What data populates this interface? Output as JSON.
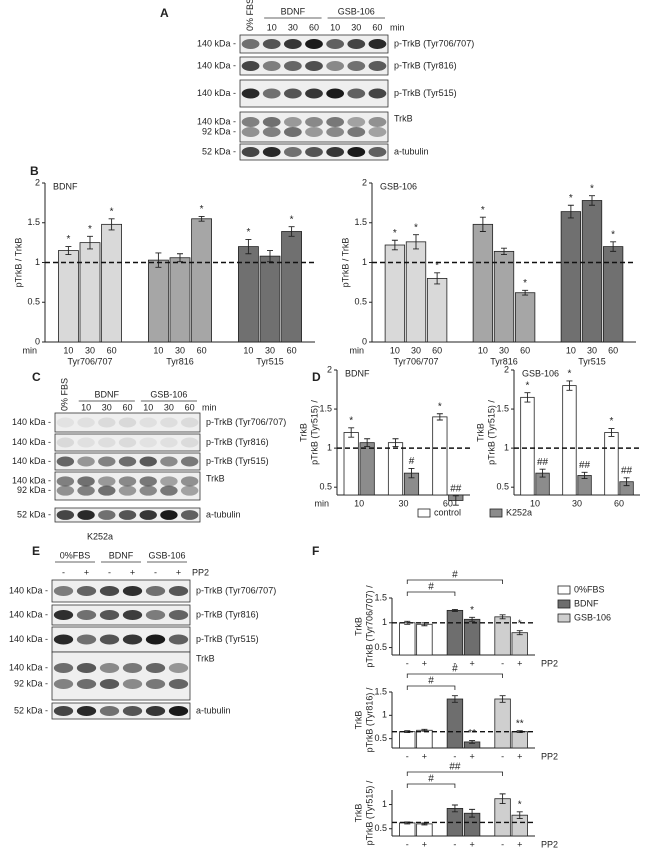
{
  "panel_labels": [
    "A",
    "B",
    "C",
    "D",
    "E",
    "F"
  ],
  "blots": [
    {
      "groups": [
        {
          "label": "0% FBS"
        },
        {
          "label": "BDNF",
          "lanes": [
            "10",
            "30",
            "60"
          ]
        },
        {
          "label": "GSB-106",
          "lanes": [
            "10",
            "30",
            "60"
          ]
        }
      ],
      "unit": "min",
      "rows": [
        {
          "kda": [
            "140 kDa -"
          ],
          "label": "p-TrkB (Tyr706/707)"
        },
        {
          "kda": [
            "140 kDa -"
          ],
          "label": "p-TrkB (Tyr816)"
        },
        {
          "kda": [
            "140 kDa -"
          ],
          "label": "p-TrkB (Tyr515)"
        },
        {
          "kda": [
            "140 kDa -",
            "92 kDa -"
          ],
          "label": "TrkB"
        },
        {
          "kda": [
            "52 kDa -"
          ],
          "label": "a-tubulin"
        }
      ]
    },
    {
      "groups": [
        {
          "label": "0% FBS"
        },
        {
          "label": "BDNF",
          "lanes": [
            "10",
            "30",
            "60"
          ]
        },
        {
          "label": "GSB-106",
          "lanes": [
            "10",
            "30",
            "60"
          ]
        }
      ],
      "unit": "min",
      "rows": [
        {
          "kda": [
            "140 kDa -"
          ],
          "label": "p-TrkB (Tyr706/707)"
        },
        {
          "kda": [
            "140 kDa -"
          ],
          "label": "p-TrkB (Tyr816)"
        },
        {
          "kda": [
            "140 kDa -"
          ],
          "label": "p-TrkB (Tyr515)"
        },
        {
          "kda": [
            "140 kDa -",
            "92 kDa -"
          ],
          "label": "TrkB"
        },
        {
          "kda": [
            "52 kDa -"
          ],
          "label": "a-tubulin"
        }
      ],
      "footer": "K252a"
    },
    {
      "groups": [
        {
          "label": "0%FBS",
          "lanes": [
            "-",
            "+"
          ]
        },
        {
          "label": "BDNF",
          "lanes": [
            "-",
            "+"
          ]
        },
        {
          "label": "GSB-106",
          "lanes": [
            "-",
            "+"
          ]
        }
      ],
      "unit": "PP2",
      "rows": [
        {
          "kda": [
            "140 kDa -"
          ],
          "label": "p-TrkB (Tyr706/707)"
        },
        {
          "kda": [
            "140 kDa -"
          ],
          "label": "p-TrkB (Tyr816)"
        },
        {
          "kda": [
            "140 kDa -"
          ],
          "label": "p-TrkB (Tyr515)"
        },
        {
          "kda": [
            "140 kDa -",
            "92 kDa -"
          ],
          "label": "TrkB"
        },
        {
          "kda": [
            "52 kDa -"
          ],
          "label": "a-tubulin"
        }
      ]
    }
  ],
  "chart_data": [
    {
      "type": "bar",
      "title": "BDNF",
      "y_label": [
        "pTrkB / TrkB"
      ],
      "ylim": [
        0,
        2
      ],
      "yticks": [
        0,
        0.5,
        1,
        1.5,
        2
      ],
      "reference_line": 1,
      "group_by": "series",
      "categories": [
        "10",
        "30",
        "60"
      ],
      "x_label": "min",
      "x_label_position": "left",
      "series": [
        {
          "name": "Tyr706/707",
          "color": "#d9d9d9",
          "values": [
            1.15,
            1.25,
            1.48
          ],
          "errors": [
            0.05,
            0.08,
            0.07
          ],
          "annotations": [
            "*",
            "*",
            "*"
          ]
        },
        {
          "name": "Tyr816",
          "color": "#a6a6a6",
          "values": [
            1.03,
            1.06,
            1.55
          ],
          "errors": [
            0.09,
            0.05,
            0.03
          ],
          "annotations": [
            null,
            null,
            "*"
          ]
        },
        {
          "name": "Tyr515",
          "color": "#707070",
          "values": [
            1.2,
            1.08,
            1.39
          ],
          "errors": [
            0.09,
            0.07,
            0.06
          ],
          "annotations": [
            "*",
            null,
            "*"
          ]
        }
      ]
    },
    {
      "type": "bar",
      "title": "GSB-106",
      "y_label": [
        "pTrkB / TrkB"
      ],
      "ylim": [
        0,
        2
      ],
      "yticks": [
        0,
        0.5,
        1,
        1.5,
        2
      ],
      "reference_line": 1,
      "group_by": "series",
      "categories": [
        "10",
        "30",
        "60"
      ],
      "x_label": "min",
      "x_label_position": "left",
      "series": [
        {
          "name": "Tyr706/707",
          "color": "#d9d9d9",
          "values": [
            1.22,
            1.26,
            0.8
          ],
          "errors": [
            0.06,
            0.09,
            0.07
          ],
          "annotations": [
            "*",
            "*",
            "*"
          ]
        },
        {
          "name": "Tyr816",
          "color": "#a6a6a6",
          "values": [
            1.48,
            1.14,
            0.62
          ],
          "errors": [
            0.09,
            0.04,
            0.03
          ],
          "annotations": [
            "*",
            null,
            "*"
          ]
        },
        {
          "name": "Tyr515",
          "color": "#707070",
          "values": [
            1.64,
            1.78,
            1.2
          ],
          "errors": [
            0.08,
            0.06,
            0.06
          ],
          "annotations": [
            "*",
            "*",
            "*"
          ]
        }
      ]
    },
    {
      "type": "bar",
      "title": "BDNF",
      "y_label": [
        "pTrkB (Tyr515) /",
        "TrkB"
      ],
      "ylim": [
        0.4,
        2
      ],
      "yticks": [
        0.5,
        1,
        1.5,
        2
      ],
      "reference_line": 1,
      "group_by": "categories",
      "categories": [
        "10",
        "30",
        "60"
      ],
      "x_label": "min",
      "x_label_position": "left",
      "legend": "bottom",
      "series": [
        {
          "name": "control",
          "color": "#ffffff",
          "values": [
            1.2,
            1.07,
            1.4
          ],
          "errors": [
            0.06,
            0.05,
            0.04
          ],
          "annotations": [
            "*",
            null,
            "*"
          ]
        },
        {
          "name": "K252a",
          "color": "#8c8c8c",
          "values": [
            1.07,
            0.68,
            0.33
          ],
          "errors": [
            0.05,
            0.06,
            0.06
          ],
          "annotations": [
            null,
            "#",
            "##"
          ]
        }
      ]
    },
    {
      "type": "bar",
      "title": "GSB-106",
      "y_label": [
        "pTrkB (Tyr515) /",
        "TrkB"
      ],
      "ylim": [
        0.4,
        2
      ],
      "yticks": [
        0.5,
        1,
        1.5,
        2
      ],
      "reference_line": 1,
      "group_by": "categories",
      "categories": [
        "10",
        "30",
        "60"
      ],
      "series": [
        {
          "color": "#ffffff",
          "values": [
            1.65,
            1.8,
            1.2
          ],
          "errors": [
            0.06,
            0.06,
            0.05
          ],
          "annotations": [
            "*",
            "*",
            "*"
          ]
        },
        {
          "color": "#8c8c8c",
          "values": [
            0.68,
            0.65,
            0.57
          ],
          "errors": [
            0.05,
            0.04,
            0.05
          ],
          "annotations": [
            "##",
            "##",
            "##"
          ]
        }
      ]
    },
    {
      "type": "bar",
      "y_label": [
        "pTrkB (Tyr706/707) /",
        "TrkB"
      ],
      "ylim": [
        0.35,
        1.5
      ],
      "yticks": [
        0.5,
        1,
        1.5
      ],
      "reference_line": 1,
      "group_by": "series",
      "categories": [
        "-",
        "+"
      ],
      "x_label": "PP2",
      "x_label_position": "right",
      "legend": "right",
      "brackets": [
        "#",
        "#"
      ],
      "series": [
        {
          "name": "0%FBS",
          "color": "#ffffff",
          "values": [
            1,
            0.97
          ],
          "errors": [
            0.03,
            0.03
          ]
        },
        {
          "name": "BDNF",
          "color": "#6e6e6e",
          "values": [
            1.25,
            1.07
          ],
          "errors": [
            0.02,
            0.04
          ],
          "annotations": [
            null,
            "*"
          ]
        },
        {
          "name": "GSB-106",
          "color": "#cfcfcf",
          "values": [
            1.12,
            0.8
          ],
          "errors": [
            0.04,
            0.04
          ],
          "annotations": [
            null,
            "*"
          ]
        }
      ]
    },
    {
      "type": "bar",
      "y_label": [
        "pTrkB (Tyr816) /",
        "TrkB"
      ],
      "ylim": [
        0.3,
        1.5
      ],
      "yticks": [
        0.5,
        1,
        1.5
      ],
      "reference_line": 0.65,
      "group_by": "series",
      "categories": [
        "-",
        "+"
      ],
      "x_label": "PP2",
      "x_label_position": "right",
      "brackets": [
        "#",
        "#"
      ],
      "series": [
        {
          "color": "#ffffff",
          "values": [
            0.65,
            0.68
          ],
          "errors": [
            0.02,
            0.02
          ]
        },
        {
          "color": "#6e6e6e",
          "values": [
            1.35,
            0.43
          ],
          "errors": [
            0.07,
            0.03
          ],
          "annotations": [
            null,
            "**"
          ]
        },
        {
          "color": "#cfcfcf",
          "values": [
            1.35,
            0.65
          ],
          "errors": [
            0.07,
            0.02
          ],
          "annotations": [
            null,
            "**"
          ]
        }
      ]
    },
    {
      "type": "bar",
      "y_label": [
        "pTrkB (Tyr515) /",
        "TrkB"
      ],
      "ylim": [
        0.35,
        1.3
      ],
      "yticks": [
        0.5,
        1
      ],
      "reference_line": 0.63,
      "group_by": "series",
      "categories": [
        "-",
        "+"
      ],
      "x_label": "PP2",
      "x_label_position": "right",
      "brackets": [
        "#",
        "##"
      ],
      "series": [
        {
          "color": "#ffffff",
          "values": [
            0.62,
            0.6
          ],
          "errors": [
            0.02,
            0.02
          ]
        },
        {
          "color": "#6e6e6e",
          "values": [
            0.92,
            0.82
          ],
          "errors": [
            0.07,
            0.08
          ]
        },
        {
          "color": "#cfcfcf",
          "values": [
            1.12,
            0.78
          ],
          "errors": [
            0.1,
            0.07
          ],
          "annotations": [
            null,
            "*"
          ]
        }
      ]
    }
  ]
}
